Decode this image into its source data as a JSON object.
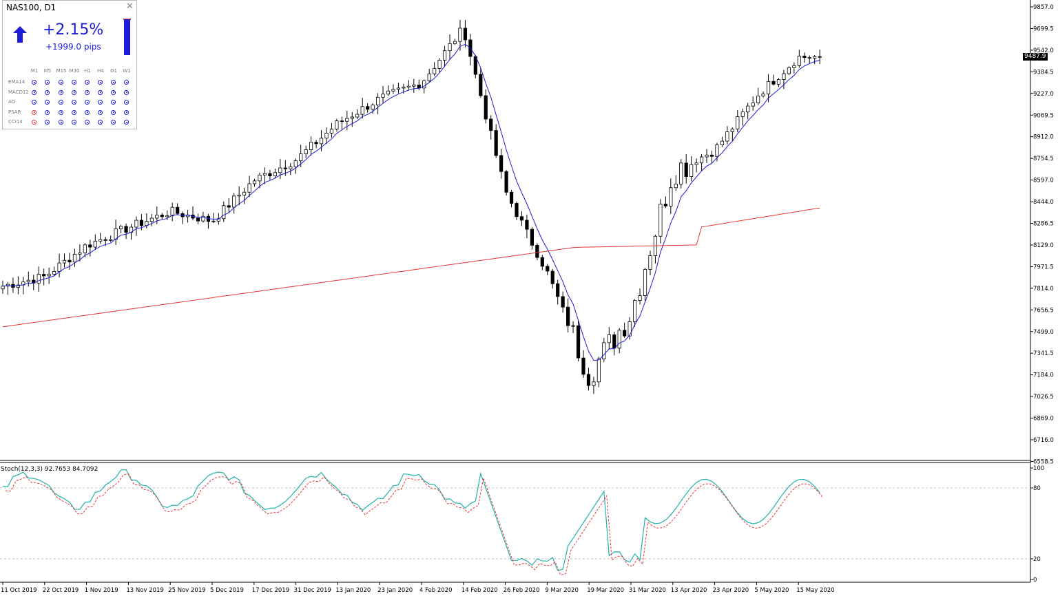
{
  "panel": {
    "title": "NAS100, D1",
    "change_pct": "+2.15%",
    "change_pips": "+1999.0 pips",
    "timeframes": [
      "M1",
      "M5",
      "M15",
      "M30",
      "H1",
      "H4",
      "D1",
      "W1"
    ],
    "indicators": [
      {
        "name": "EMA14",
        "signals": [
          "blue",
          "blue",
          "blue",
          "blue",
          "blue",
          "blue",
          "blue",
          "blue"
        ]
      },
      {
        "name": "MACD12",
        "signals": [
          "blue",
          "blue",
          "blue",
          "blue",
          "blue",
          "blue",
          "blue",
          "blue"
        ]
      },
      {
        "name": "AO",
        "signals": [
          "blue",
          "blue",
          "blue",
          "blue",
          "blue",
          "blue",
          "blue",
          "blue"
        ]
      },
      {
        "name": "PSAR",
        "signals": [
          "red",
          "blue",
          "blue",
          "blue",
          "blue",
          "blue",
          "blue",
          "blue"
        ]
      },
      {
        "name": "CCI14",
        "signals": [
          "red",
          "blue",
          "blue",
          "blue",
          "blue",
          "blue",
          "blue",
          "blue"
        ]
      }
    ],
    "colors": {
      "up": "#1c1cd6",
      "down": "#e53535"
    }
  },
  "price_axis": [
    "9857.0",
    "9699.5",
    "9542.0",
    "9384.5",
    "9227.0",
    "9069.5",
    "8912.0",
    "8754.5",
    "8597.0",
    "8444.0",
    "8286.5",
    "8129.0",
    "7971.5",
    "7814.0",
    "7656.5",
    "7499.0",
    "7341.5",
    "7184.0",
    "7026.5",
    "6869.0",
    "6716.0",
    "6558.5"
  ],
  "current_price": "9487.9",
  "stoch": {
    "label": "Stoch(12,3,3) 92.7653 84.7092",
    "levels": [
      "100",
      "80",
      "20",
      "0"
    ]
  },
  "date_axis": [
    "11 Oct 2019",
    "22 Oct 2019",
    "1 Nov 2019",
    "13 Nov 2019",
    "25 Nov 2019",
    "5 Dec 2019",
    "17 Dec 2019",
    "31 Dec 2019",
    "13 Jan 2020",
    "23 Jan 2020",
    "4 Feb 2020",
    "14 Feb 2020",
    "26 Feb 2020",
    "9 Mar 2020",
    "19 Mar 2020",
    "31 Mar 2020",
    "13 Apr 2020",
    "23 Apr 2020",
    "5 May 2020",
    "15 May 2020"
  ],
  "chart_data": {
    "type": "candlestick",
    "symbol": "NAS100",
    "timeframe": "D1",
    "ylim": [
      6558.5,
      9857.0
    ],
    "anchors": [
      {
        "date": "2019-10-11",
        "close": 7800
      },
      {
        "date": "2019-10-22",
        "close": 7870
      },
      {
        "date": "2019-11-01",
        "close": 8100
      },
      {
        "date": "2019-11-13",
        "close": 8230
      },
      {
        "date": "2019-11-25",
        "close": 8350
      },
      {
        "date": "2019-12-05",
        "close": 8280
      },
      {
        "date": "2019-12-17",
        "close": 8580
      },
      {
        "date": "2019-12-31",
        "close": 8730
      },
      {
        "date": "2020-01-13",
        "close": 9000
      },
      {
        "date": "2020-01-23",
        "close": 9180
      },
      {
        "date": "2020-02-04",
        "close": 9300
      },
      {
        "date": "2020-02-14",
        "close": 9700
      },
      {
        "date": "2020-02-26",
        "close": 8500
      },
      {
        "date": "2020-03-09",
        "close": 7900
      },
      {
        "date": "2020-03-19",
        "close": 7150
      },
      {
        "date": "2020-03-31",
        "close": 7600
      },
      {
        "date": "2020-04-13",
        "close": 8650
      },
      {
        "date": "2020-04-23",
        "close": 8800
      },
      {
        "date": "2020-05-05",
        "close": 9200
      },
      {
        "date": "2020-05-15",
        "close": 9487.9
      }
    ],
    "moving_averages": [
      {
        "name": "fast MA",
        "color": "#1c1cd6"
      },
      {
        "name": "slow MA",
        "color": "#e53535",
        "start": 7500,
        "end": 8380
      }
    ]
  }
}
